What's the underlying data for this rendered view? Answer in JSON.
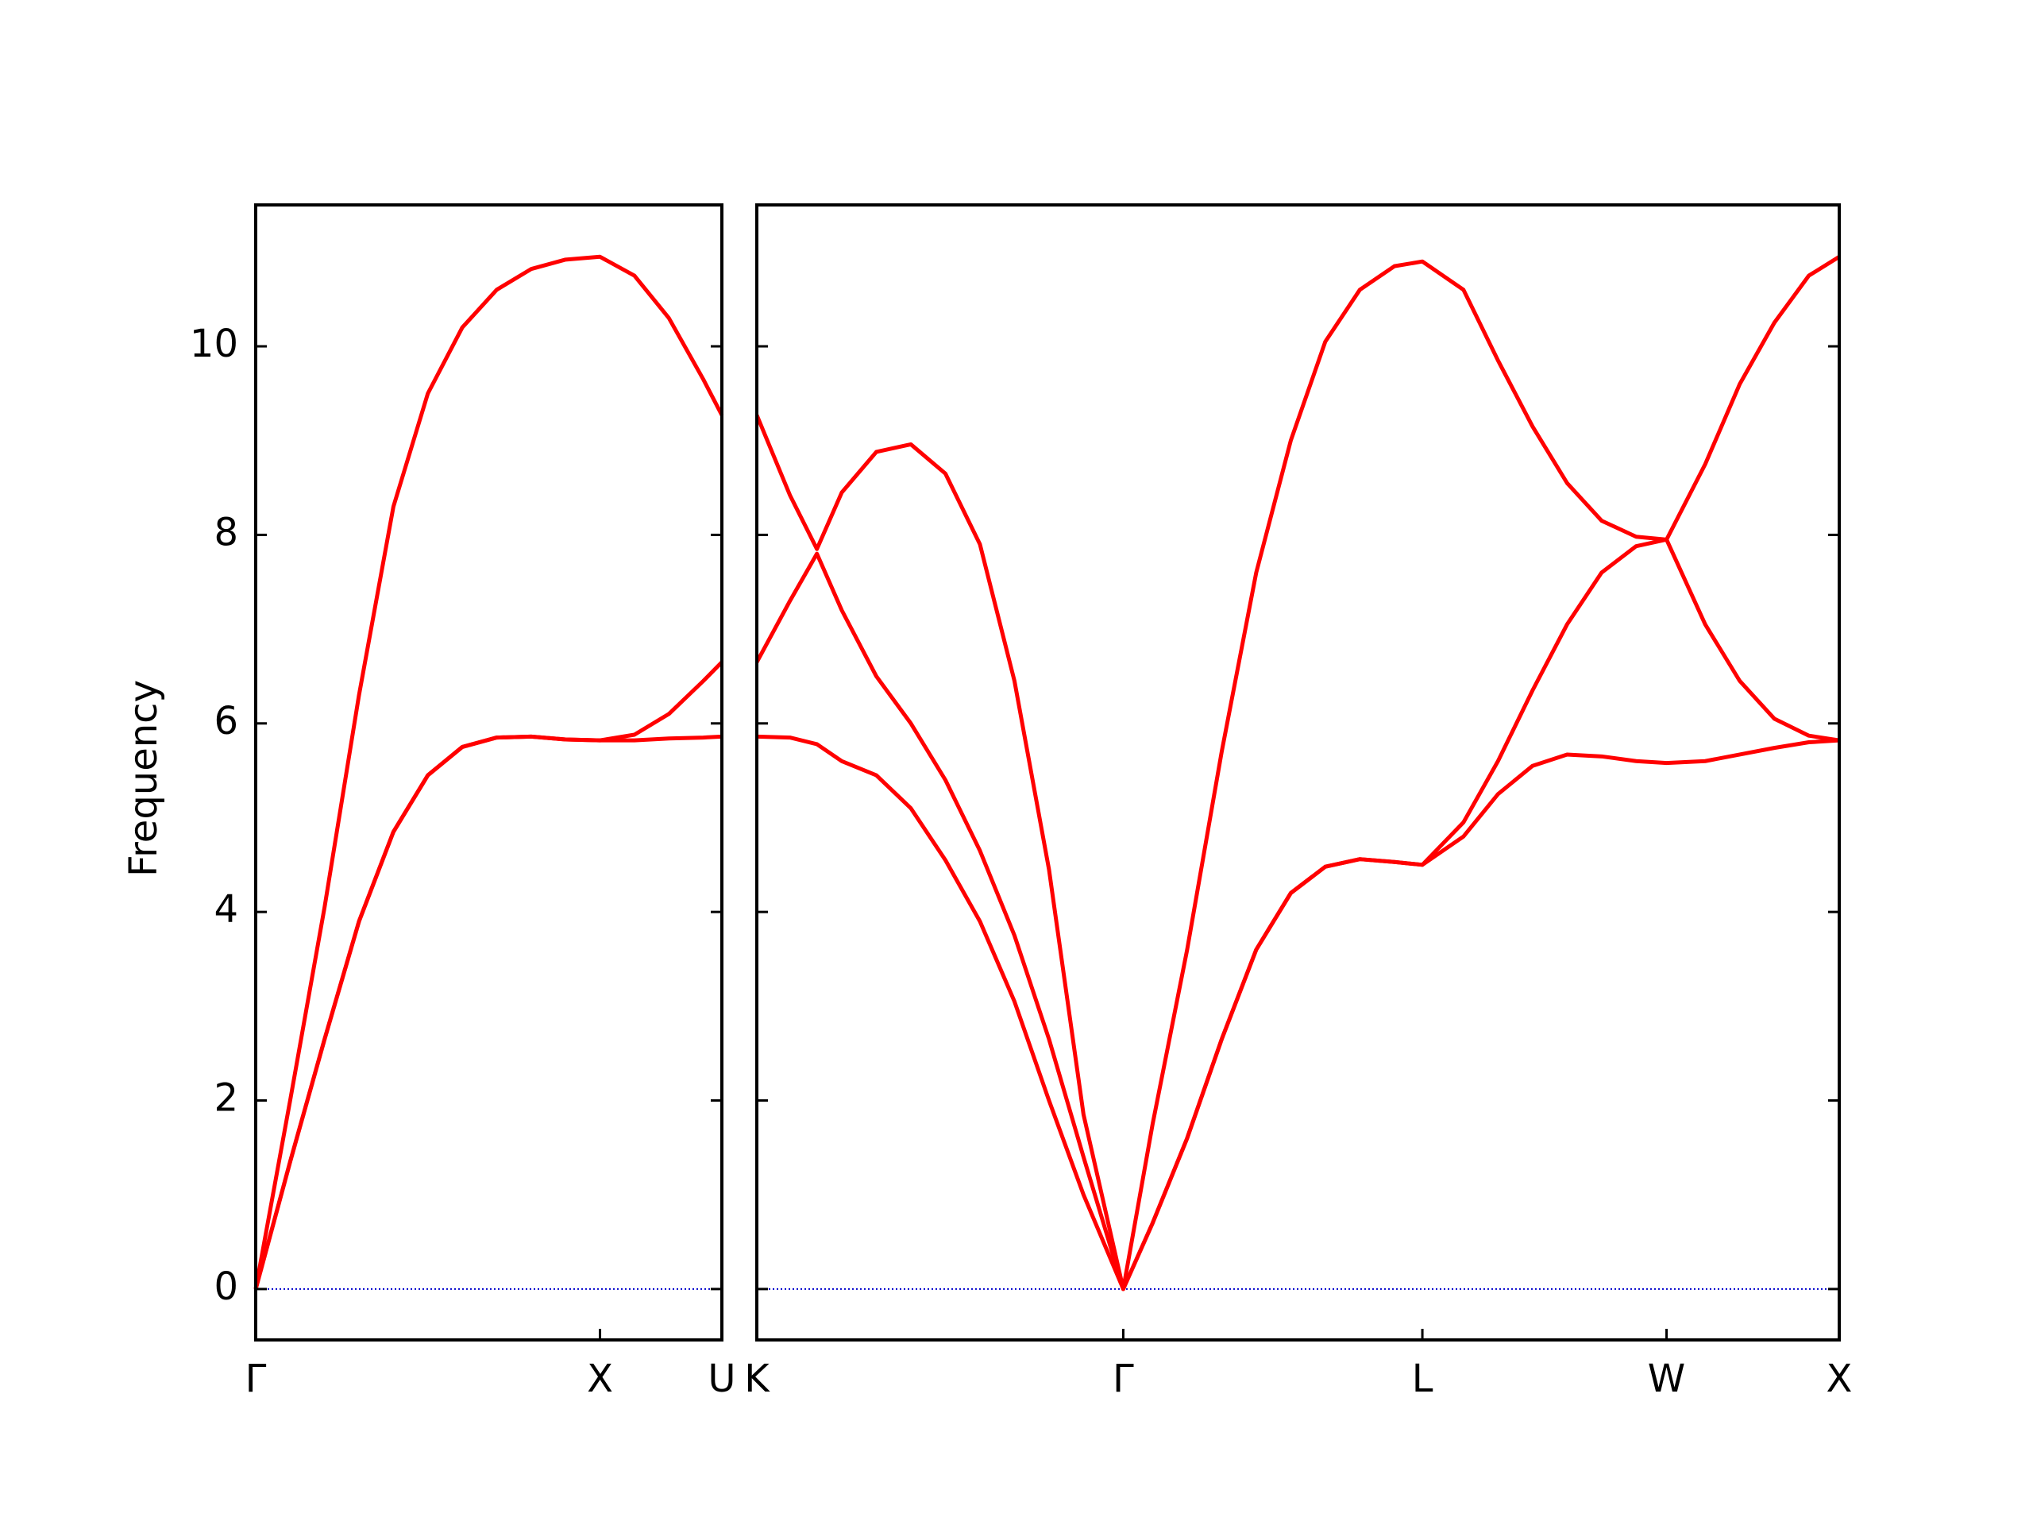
{
  "chart_data": [
    {
      "type": "line",
      "ylabel": "Frequency",
      "x": [
        0,
        0.1,
        0.2,
        0.3,
        0.4,
        0.5,
        0.6,
        0.7,
        0.8,
        0.9,
        1.0,
        1.1,
        1.2,
        1.3,
        1.354
      ],
      "series": [
        {
          "color": "#ff0000",
          "values": [
            0,
            2.0,
            4.05,
            6.3,
            8.3,
            9.5,
            10.2,
            10.6,
            10.82,
            10.92,
            10.95,
            10.75,
            10.3,
            9.65,
            9.27
          ]
        },
        {
          "color": "#ff0000",
          "values": [
            0,
            1.35,
            2.65,
            3.9,
            4.85,
            5.45,
            5.75,
            5.85,
            5.86,
            5.83,
            5.82,
            5.88,
            6.1,
            6.45,
            6.65
          ]
        },
        {
          "color": "#ff0000",
          "values": [
            0,
            1.35,
            2.65,
            3.9,
            4.85,
            5.45,
            5.75,
            5.85,
            5.86,
            5.83,
            5.82,
            5.82,
            5.84,
            5.85,
            5.86
          ]
        }
      ],
      "xlim": [
        0,
        1.354
      ],
      "ylim": [
        -0.54,
        11.5
      ],
      "xticks": [
        {
          "value": 0,
          "label": "Γ"
        },
        {
          "value": 1,
          "label": "X"
        },
        {
          "value": 1.354,
          "label": "U"
        }
      ],
      "yticks": [
        0,
        2,
        4,
        6,
        8,
        10
      ],
      "hlines": [
        {
          "y": 0,
          "color": "#0000cc"
        }
      ]
    },
    {
      "type": "line",
      "x": [
        1.354,
        1.45,
        1.528,
        1.6,
        1.7,
        1.8,
        1.9,
        2.0,
        2.1,
        2.2,
        2.3,
        2.415,
        2.5,
        2.6,
        2.7,
        2.8,
        2.9,
        3.0,
        3.1,
        3.2,
        3.281,
        3.4,
        3.5,
        3.6,
        3.7,
        3.8,
        3.9,
        3.988,
        4.1,
        4.2,
        4.3,
        4.4,
        4.488
      ],
      "series": [
        {
          "color": "#ff0000",
          "values": [
            9.27,
            8.42,
            7.85,
            8.45,
            8.88,
            8.96,
            8.65,
            7.9,
            6.45,
            4.45,
            1.85,
            0,
            1.75,
            3.6,
            5.7,
            7.6,
            9.0,
            10.05,
            10.6,
            10.85,
            10.9,
            10.6,
            9.85,
            9.15,
            8.55,
            8.15,
            7.98,
            7.95,
            8.75,
            9.6,
            10.25,
            10.75,
            10.95
          ]
        },
        {
          "color": "#ff0000",
          "values": [
            6.65,
            7.3,
            7.8,
            7.2,
            6.5,
            6.0,
            5.4,
            4.65,
            3.75,
            2.65,
            1.4,
            0,
            0.7,
            1.6,
            2.65,
            3.6,
            4.2,
            4.48,
            4.56,
            4.53,
            4.5,
            4.95,
            5.6,
            6.35,
            7.05,
            7.6,
            7.88,
            7.95,
            7.05,
            6.45,
            6.05,
            5.87,
            5.82
          ]
        },
        {
          "color": "#ff0000",
          "values": [
            5.86,
            5.85,
            5.78,
            5.6,
            5.45,
            5.1,
            4.55,
            3.9,
            3.05,
            2.0,
            1.0,
            0,
            0.7,
            1.6,
            2.65,
            3.6,
            4.2,
            4.48,
            4.56,
            4.53,
            4.5,
            4.8,
            5.25,
            5.55,
            5.67,
            5.65,
            5.6,
            5.58,
            5.6,
            5.67,
            5.74,
            5.8,
            5.82
          ]
        }
      ],
      "xlim": [
        1.354,
        4.488
      ],
      "ylim": [
        -0.54,
        11.5
      ],
      "xticks": [
        {
          "value": 1.354,
          "label": "K"
        },
        {
          "value": 2.415,
          "label": "Γ"
        },
        {
          "value": 3.281,
          "label": "L"
        },
        {
          "value": 3.988,
          "label": "W"
        },
        {
          "value": 4.488,
          "label": "X"
        }
      ],
      "hlines": [
        {
          "y": 0,
          "color": "#0000cc"
        }
      ]
    }
  ]
}
